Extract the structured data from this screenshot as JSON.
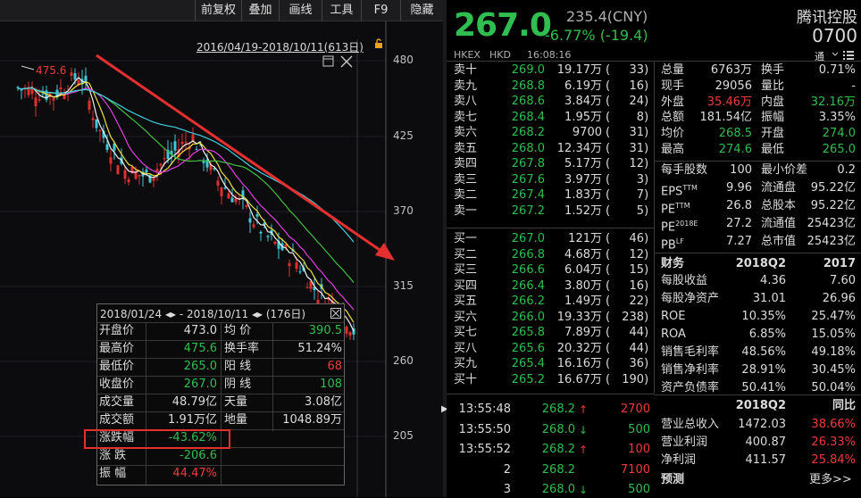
{
  "toolbar": {
    "items": [
      "前复权",
      "叠加",
      "画线",
      "工具",
      "F9",
      "隐藏"
    ]
  },
  "chart": {
    "range_label": "2016/04/19-2018/10/11(613日)",
    "peak_label": "475.6",
    "y_labels": [
      "480",
      "425",
      "370",
      "315",
      "260",
      "205"
    ]
  },
  "popup": {
    "header": "2018/01/24 ◂▸ - 2018/10/11 ◂▸  (176日)",
    "rows": [
      {
        "l1": "开盘价",
        "v1": "473.0",
        "l2": "均  价",
        "v2": "390.5"
      },
      {
        "l1": "最高价",
        "v1": "475.6",
        "l2": "换手率",
        "v2": "51.24%"
      },
      {
        "l1": "最低价",
        "v1": "265.0",
        "l2": "阳  线",
        "v2": "68"
      },
      {
        "l1": "收盘价",
        "v1": "267.0",
        "l2": "阴  线",
        "v2": "108"
      },
      {
        "l1": "成交量",
        "v1": "48.79亿",
        "l2": "天量",
        "v2": "3.08亿"
      },
      {
        "l1": "成交额",
        "v1": "1.91万亿",
        "l2": "地量",
        "v2": "1048.89万"
      },
      {
        "l1": "涨跌幅",
        "v1": "-43.62%",
        "l2": "",
        "v2": ""
      },
      {
        "l1": "涨  跌",
        "v1": "-206.6",
        "l2": "",
        "v2": ""
      },
      {
        "l1": "振  幅",
        "v1": "44.47%",
        "l2": "",
        "v2": ""
      }
    ]
  },
  "quote": {
    "price": "267.0",
    "prev": "235.4(CNY)",
    "change": "-6.77% (-19.4)",
    "name": "腾讯控股",
    "code": "0700",
    "market": "HKEX",
    "currency": "HKD",
    "time": "16:08:16",
    "tong": "通"
  },
  "sells": [
    {
      "label": "卖十",
      "price": "269.0",
      "vol": "19.17万",
      "cnt": "33"
    },
    {
      "label": "卖九",
      "price": "268.8",
      "vol": "6.19万",
      "cnt": "16"
    },
    {
      "label": "卖八",
      "price": "268.6",
      "vol": "3.84万",
      "cnt": "24"
    },
    {
      "label": "卖七",
      "price": "268.4",
      "vol": "1.95万",
      "cnt": "8"
    },
    {
      "label": "卖六",
      "price": "268.2",
      "vol": "9700",
      "cnt": "31"
    },
    {
      "label": "卖五",
      "price": "268.0",
      "vol": "12.34万",
      "cnt": "31"
    },
    {
      "label": "卖四",
      "price": "267.8",
      "vol": "5.17万",
      "cnt": "12"
    },
    {
      "label": "卖三",
      "price": "267.6",
      "vol": "3.97万",
      "cnt": "3"
    },
    {
      "label": "卖二",
      "price": "267.4",
      "vol": "1.83万",
      "cnt": "7"
    },
    {
      "label": "卖一",
      "price": "267.2",
      "vol": "1.52万",
      "cnt": "5"
    }
  ],
  "buys": [
    {
      "label": "买一",
      "price": "267.0",
      "vol": "121万",
      "cnt": "46"
    },
    {
      "label": "买二",
      "price": "266.8",
      "vol": "4.68万",
      "cnt": "12"
    },
    {
      "label": "买三",
      "price": "266.6",
      "vol": "6.04万",
      "cnt": "15"
    },
    {
      "label": "买四",
      "price": "266.4",
      "vol": "3.80万",
      "cnt": "16"
    },
    {
      "label": "买五",
      "price": "266.2",
      "vol": "1.49万",
      "cnt": "22"
    },
    {
      "label": "买六",
      "price": "266.0",
      "vol": "19.33万",
      "cnt": "238"
    },
    {
      "label": "买七",
      "price": "265.8",
      "vol": "7.89万",
      "cnt": "44"
    },
    {
      "label": "买八",
      "price": "265.6",
      "vol": "20.32万",
      "cnt": "44"
    },
    {
      "label": "买九",
      "price": "265.4",
      "vol": "16.16万",
      "cnt": "36"
    },
    {
      "label": "买十",
      "price": "265.2",
      "vol": "16.67万",
      "cnt": "190"
    }
  ],
  "stats": [
    {
      "l1": "总量",
      "v1": "6763万",
      "c1": "w",
      "l2": "换手",
      "v2": "0.71%",
      "c2": "w"
    },
    {
      "l1": "现手",
      "v1": "29056",
      "c1": "w",
      "l2": "量比",
      "v2": "-",
      "c2": "w"
    },
    {
      "l1": "外盘",
      "v1": "35.46万",
      "c1": "r",
      "l2": "内盘",
      "v2": "32.16万",
      "c2": "g"
    },
    {
      "l1": "总额",
      "v1": "181.54亿",
      "c1": "w",
      "l2": "振幅",
      "v2": "3.35%",
      "c2": "w"
    },
    {
      "l1": "均价",
      "v1": "268.5",
      "c1": "g",
      "l2": "开盘",
      "v2": "274.0",
      "c2": "g"
    },
    {
      "l1": "最高",
      "v1": "274.6",
      "c1": "g",
      "l2": "最低",
      "v2": "265.0",
      "c2": "g"
    }
  ],
  "stats2": [
    {
      "l1": "每手股数",
      "v1": "100",
      "l2": "最小价差",
      "v2": "0.2"
    },
    {
      "l1": "EPS",
      "s1": "TTM",
      "v1": "9.96",
      "l2": "流通盘",
      "v2": "95.22亿"
    },
    {
      "l1": "PE",
      "s1": "TTM",
      "v1": "26.8",
      "l2": "总股本",
      "v2": "95.22亿"
    },
    {
      "l1": "PE",
      "s1": "2018E",
      "v1": "27.2",
      "l2": "流通值",
      "v2": "25423亿"
    },
    {
      "l1": "PB",
      "s1": "LF",
      "v1": "7.27",
      "l2": "总市值",
      "v2": "25423亿"
    }
  ],
  "fin": {
    "h0": "财务",
    "h1": "2018Q2",
    "h2": "2017",
    "rows": [
      {
        "l": "每股收益",
        "a": "4.36",
        "b": "7.60"
      },
      {
        "l": "每股净资产",
        "a": "31.01",
        "b": "26.96"
      },
      {
        "l": "ROE",
        "a": "10.35%",
        "b": "25.47%"
      },
      {
        "l": "ROA",
        "a": "6.85%",
        "b": "15.05%"
      },
      {
        "l": "销售毛利率",
        "a": "48.56%",
        "b": "49.18%"
      },
      {
        "l": "销售净利率",
        "a": "28.91%",
        "b": "30.45%"
      },
      {
        "l": "资产负债率",
        "a": "50.41%",
        "b": "50.04%"
      }
    ]
  },
  "fin2": {
    "h1": "2018Q2",
    "h2": "同比",
    "rows": [
      {
        "l": "营业总收入",
        "a": "1472.03",
        "b": "38.66%"
      },
      {
        "l": "营业利润",
        "a": "400.87",
        "b": "26.33%"
      },
      {
        "l": "净利润",
        "a": "411.57",
        "b": "25.84%"
      }
    ],
    "forecast": "预测",
    "more": "更多>>"
  },
  "ticks": [
    {
      "t": "13:55:48",
      "p": "268.2",
      "d": "up",
      "v": "2700",
      "vc": "r"
    },
    {
      "t": "13:55:50",
      "p": "268.0",
      "d": "down",
      "v": "500",
      "vc": "g"
    },
    {
      "t": "13:55:52",
      "p": "268.2",
      "d": "up",
      "v": "100",
      "vc": "r"
    },
    {
      "t": "2",
      "p": "268.2",
      "d": "none",
      "v": "7100",
      "vc": "r"
    },
    {
      "t": "3",
      "p": "268.0",
      "d": "down",
      "v": "500",
      "vc": "g"
    }
  ],
  "colors": {
    "up": "#f03a3a",
    "down": "#2fbe4f",
    "price_green": "#2fbe4f",
    "accent": "#f03a3a"
  }
}
